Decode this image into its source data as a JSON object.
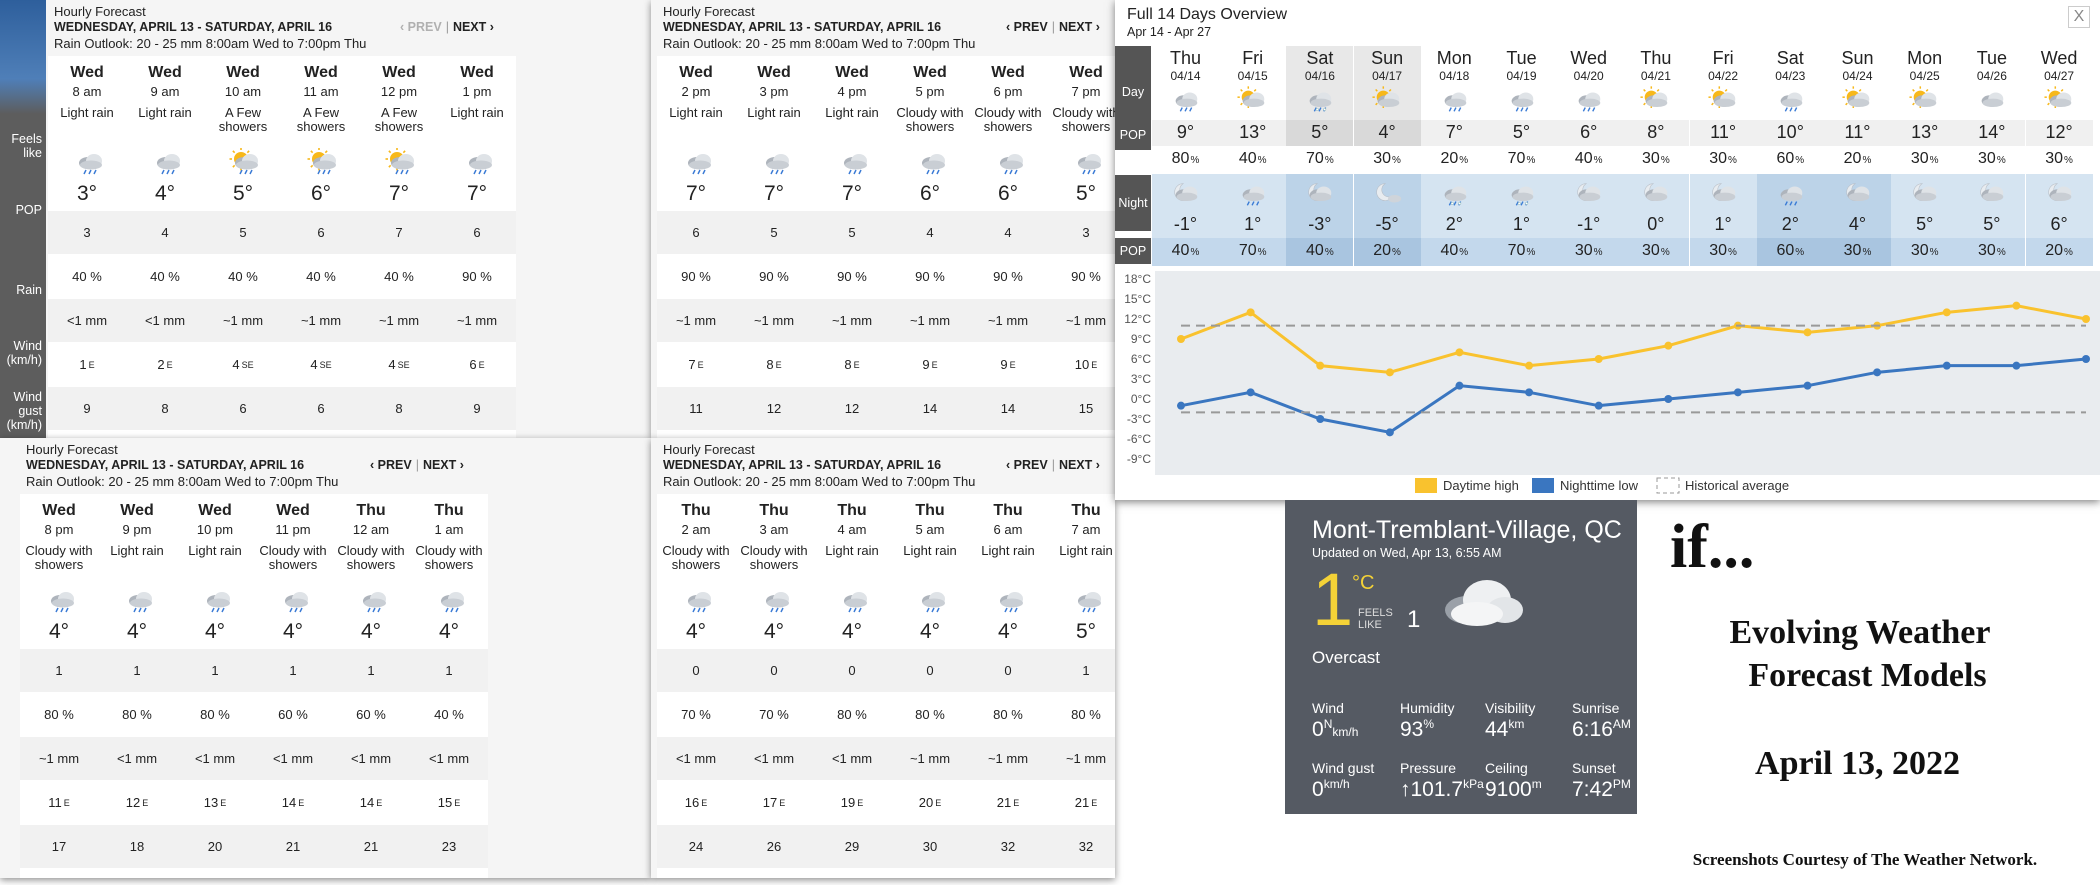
{
  "hourly_common": {
    "title": "Hourly Forecast",
    "subtitle": "WEDNESDAY, APRIL 13 - SATURDAY, APRIL 16",
    "rain": "Rain Outlook: 20 - 25 mm 8:00am Wed to 7:00pm Thu",
    "prev": "‹ PREV",
    "next": "NEXT ›",
    "sep": "|"
  },
  "row_labels": {
    "feels": "Feels like",
    "pop": "POP",
    "rain": "Rain",
    "wind": "Wind (km/h)",
    "gust": "Wind gust (km/h)"
  },
  "panels": [
    {
      "cols": [
        {
          "day": "Wed",
          "time": "8 am",
          "cond": "Light rain",
          "icon": "rain-cloud-icon",
          "temp": "3°",
          "feels": "3",
          "pop": "40 %",
          "rain": "<1 mm",
          "wind": "1",
          "dir": "E",
          "gust": "9"
        },
        {
          "day": "Wed",
          "time": "9 am",
          "cond": "Light rain",
          "icon": "rain-cloud-icon",
          "temp": "4°",
          "feels": "4",
          "pop": "40 %",
          "rain": "<1 mm",
          "wind": "2",
          "dir": "E",
          "gust": "8"
        },
        {
          "day": "Wed",
          "time": "10 am",
          "cond": "A Few showers",
          "icon": "sun-rain-icon",
          "temp": "5°",
          "feels": "5",
          "pop": "40 %",
          "rain": "~1 mm",
          "wind": "4",
          "dir": "SE",
          "gust": "6"
        },
        {
          "day": "Wed",
          "time": "11 am",
          "cond": "A Few showers",
          "icon": "sun-rain-icon",
          "temp": "6°",
          "feels": "6",
          "pop": "40 %",
          "rain": "~1 mm",
          "wind": "4",
          "dir": "SE",
          "gust": "6"
        },
        {
          "day": "Wed",
          "time": "12 pm",
          "cond": "A Few showers",
          "icon": "sun-rain-icon",
          "temp": "7°",
          "feels": "7",
          "pop": "40 %",
          "rain": "~1 mm",
          "wind": "4",
          "dir": "SE",
          "gust": "8"
        },
        {
          "day": "Wed",
          "time": "1 pm",
          "cond": "Light rain",
          "icon": "rain-cloud-icon",
          "temp": "7°",
          "feels": "6",
          "pop": "90 %",
          "rain": "~1 mm",
          "wind": "6",
          "dir": "E",
          "gust": "9"
        }
      ]
    },
    {
      "cols": [
        {
          "day": "Wed",
          "time": "2 pm",
          "cond": "Light rain",
          "icon": "rain-cloud-icon",
          "temp": "7°",
          "feels": "6",
          "pop": "90 %",
          "rain": "~1 mm",
          "wind": "7",
          "dir": "E",
          "gust": "11"
        },
        {
          "day": "Wed",
          "time": "3 pm",
          "cond": "Light rain",
          "icon": "rain-cloud-icon",
          "temp": "7°",
          "feels": "5",
          "pop": "90 %",
          "rain": "~1 mm",
          "wind": "8",
          "dir": "E",
          "gust": "12"
        },
        {
          "day": "Wed",
          "time": "4 pm",
          "cond": "Light rain",
          "icon": "rain-cloud-icon",
          "temp": "7°",
          "feels": "5",
          "pop": "90 %",
          "rain": "~1 mm",
          "wind": "8",
          "dir": "E",
          "gust": "12"
        },
        {
          "day": "Wed",
          "time": "5 pm",
          "cond": "Cloudy with showers",
          "icon": "rain-cloud-icon",
          "temp": "6°",
          "feels": "4",
          "pop": "90 %",
          "rain": "~1 mm",
          "wind": "9",
          "dir": "E",
          "gust": "14"
        },
        {
          "day": "Wed",
          "time": "6 pm",
          "cond": "Cloudy with showers",
          "icon": "rain-cloud-icon",
          "temp": "6°",
          "feels": "4",
          "pop": "90 %",
          "rain": "~1 mm",
          "wind": "9",
          "dir": "E",
          "gust": "14"
        },
        {
          "day": "Wed",
          "time": "7 pm",
          "cond": "Cloudy with showers",
          "icon": "rain-cloud-icon",
          "temp": "5°",
          "feels": "3",
          "pop": "90 %",
          "rain": "~1 mm",
          "wind": "10",
          "dir": "E",
          "gust": "15"
        }
      ]
    },
    {
      "cols": [
        {
          "day": "Wed",
          "time": "8 pm",
          "cond": "Cloudy with showers",
          "icon": "rain-cloud-icon",
          "temp": "4°",
          "feels": "1",
          "pop": "80 %",
          "rain": "~1 mm",
          "wind": "11",
          "dir": "E",
          "gust": "17"
        },
        {
          "day": "Wed",
          "time": "9 pm",
          "cond": "Light rain",
          "icon": "rain-cloud-icon",
          "temp": "4°",
          "feels": "1",
          "pop": "80 %",
          "rain": "<1 mm",
          "wind": "12",
          "dir": "E",
          "gust": "18"
        },
        {
          "day": "Wed",
          "time": "10 pm",
          "cond": "Light rain",
          "icon": "rain-cloud-icon",
          "temp": "4°",
          "feels": "1",
          "pop": "80 %",
          "rain": "<1 mm",
          "wind": "13",
          "dir": "E",
          "gust": "20"
        },
        {
          "day": "Wed",
          "time": "11 pm",
          "cond": "Cloudy with showers",
          "icon": "rain-cloud-icon",
          "temp": "4°",
          "feels": "1",
          "pop": "60 %",
          "rain": "<1 mm",
          "wind": "14",
          "dir": "E",
          "gust": "21"
        },
        {
          "day": "Thu",
          "time": "12 am",
          "cond": "Cloudy with showers",
          "icon": "rain-cloud-icon",
          "temp": "4°",
          "feels": "1",
          "pop": "60 %",
          "rain": "<1 mm",
          "wind": "14",
          "dir": "E",
          "gust": "21"
        },
        {
          "day": "Thu",
          "time": "1 am",
          "cond": "Cloudy with showers",
          "icon": "rain-cloud-icon",
          "temp": "4°",
          "feels": "1",
          "pop": "40 %",
          "rain": "<1 mm",
          "wind": "15",
          "dir": "E",
          "gust": "23"
        }
      ]
    },
    {
      "cols": [
        {
          "day": "Thu",
          "time": "2 am",
          "cond": "Cloudy with showers",
          "icon": "rain-cloud-icon",
          "temp": "4°",
          "feels": "0",
          "pop": "70 %",
          "rain": "<1 mm",
          "wind": "16",
          "dir": "E",
          "gust": "24"
        },
        {
          "day": "Thu",
          "time": "3 am",
          "cond": "Cloudy with showers",
          "icon": "rain-cloud-icon",
          "temp": "4°",
          "feels": "0",
          "pop": "70 %",
          "rain": "<1 mm",
          "wind": "17",
          "dir": "E",
          "gust": "26"
        },
        {
          "day": "Thu",
          "time": "4 am",
          "cond": "Light rain",
          "icon": "rain-cloud-icon",
          "temp": "4°",
          "feels": "0",
          "pop": "80 %",
          "rain": "<1 mm",
          "wind": "19",
          "dir": "E",
          "gust": "29"
        },
        {
          "day": "Thu",
          "time": "5 am",
          "cond": "Light rain",
          "icon": "rain-cloud-icon",
          "temp": "4°",
          "feels": "0",
          "pop": "80 %",
          "rain": "~1 mm",
          "wind": "20",
          "dir": "E",
          "gust": "30"
        },
        {
          "day": "Thu",
          "time": "6 am",
          "cond": "Light rain",
          "icon": "rain-cloud-icon",
          "temp": "4°",
          "feels": "0",
          "pop": "80 %",
          "rain": "~1 mm",
          "wind": "21",
          "dir": "E",
          "gust": "32"
        },
        {
          "day": "Thu",
          "time": "7 am",
          "cond": "Light rain",
          "icon": "rain-cloud-icon",
          "temp": "5°",
          "feels": "1",
          "pop": "80 %",
          "rain": "~1 mm",
          "wind": "21",
          "dir": "E",
          "gust": "32"
        }
      ]
    }
  ],
  "overview": {
    "title": "Full 14 Days Overview",
    "range": "Apr 14 - Apr 27",
    "close": "X",
    "labels": {
      "day": "Day",
      "pop": "POP",
      "night": "Night"
    },
    "days": [
      {
        "d": "Thu",
        "date": "04/14",
        "dayIcon": "rain-cloud-icon",
        "hi": "9°",
        "popDay": "80",
        "nightIcon": "moon-cloud-icon",
        "lo": "-1°",
        "popNight": "40"
      },
      {
        "d": "Fri",
        "date": "04/15",
        "dayIcon": "sun-cloud-icon",
        "hi": "13°",
        "popDay": "40",
        "nightIcon": "rain-cloud-icon",
        "lo": "1°",
        "popNight": "70"
      },
      {
        "d": "Sat",
        "date": "04/16",
        "dayIcon": "snow-rain-icon",
        "hi": "5°",
        "popDay": "70",
        "nightIcon": "moon-cloud-icon",
        "lo": "-3°",
        "popNight": "40"
      },
      {
        "d": "Sun",
        "date": "04/17",
        "dayIcon": "sun-cloud-icon",
        "hi": "4°",
        "popDay": "30",
        "nightIcon": "moon-icon",
        "lo": "-5°",
        "popNight": "20"
      },
      {
        "d": "Mon",
        "date": "04/18",
        "dayIcon": "rain-cloud-icon",
        "hi": "7°",
        "popDay": "20",
        "nightIcon": "snow-rain-icon",
        "lo": "2°",
        "popNight": "40"
      },
      {
        "d": "Tue",
        "date": "04/19",
        "dayIcon": "rain-cloud-icon",
        "hi": "5°",
        "popDay": "70",
        "nightIcon": "snow-rain-icon",
        "lo": "1°",
        "popNight": "70"
      },
      {
        "d": "Wed",
        "date": "04/20",
        "dayIcon": "rain-cloud-icon",
        "hi": "6°",
        "popDay": "40",
        "nightIcon": "moon-cloud-icon",
        "lo": "-1°",
        "popNight": "30"
      },
      {
        "d": "Thu",
        "date": "04/21",
        "dayIcon": "sun-cloud-icon",
        "hi": "8°",
        "popDay": "30",
        "nightIcon": "moon-cloud-icon",
        "lo": "0°",
        "popNight": "30"
      },
      {
        "d": "Fri",
        "date": "04/22",
        "dayIcon": "sun-cloud-icon",
        "hi": "11°",
        "popDay": "30",
        "nightIcon": "moon-cloud-icon",
        "lo": "1°",
        "popNight": "30"
      },
      {
        "d": "Sat",
        "date": "04/23",
        "dayIcon": "rain-cloud-icon",
        "hi": "10°",
        "popDay": "60",
        "nightIcon": "rain-cloud-icon",
        "lo": "2°",
        "popNight": "60"
      },
      {
        "d": "Sun",
        "date": "04/24",
        "dayIcon": "sun-cloud-icon",
        "hi": "11°",
        "popDay": "20",
        "nightIcon": "moon-cloud-icon",
        "lo": "4°",
        "popNight": "30"
      },
      {
        "d": "Mon",
        "date": "04/25",
        "dayIcon": "sun-cloud-icon",
        "hi": "13°",
        "popDay": "30",
        "nightIcon": "moon-cloud-icon",
        "lo": "5°",
        "popNight": "30"
      },
      {
        "d": "Tue",
        "date": "04/26",
        "dayIcon": "cloud-icon",
        "hi": "14°",
        "popDay": "30",
        "nightIcon": "moon-cloud-icon",
        "lo": "5°",
        "popNight": "30"
      },
      {
        "d": "Wed",
        "date": "04/27",
        "dayIcon": "sun-cloud-icon",
        "hi": "12°",
        "popDay": "30",
        "nightIcon": "moon-cloud-icon",
        "lo": "6°",
        "popNight": "20"
      }
    ],
    "pct": "%"
  },
  "chart_data": {
    "type": "line",
    "categories": [
      "04/14",
      "04/15",
      "04/16",
      "04/17",
      "04/18",
      "04/19",
      "04/20",
      "04/21",
      "04/22",
      "04/23",
      "04/24",
      "04/25",
      "04/26",
      "04/27"
    ],
    "series": [
      {
        "name": "Daytime high",
        "values": [
          9,
          13,
          5,
          4,
          7,
          5,
          6,
          8,
          11,
          10,
          11,
          13,
          14,
          12
        ],
        "color": "#f9c22e"
      },
      {
        "name": "Nighttime low",
        "values": [
          -1,
          1,
          -3,
          -5,
          2,
          1,
          -1,
          0,
          1,
          2,
          4,
          5,
          5,
          6
        ],
        "color": "#3a76c0"
      },
      {
        "name": "Historical average",
        "values": [
          11,
          11,
          11,
          11,
          11,
          11,
          11,
          11,
          11,
          11,
          11,
          11,
          11,
          11
        ],
        "color": "#999999"
      },
      {
        "name": "Historical average low",
        "values": [
          -2,
          -2,
          -2,
          -2,
          -2,
          -2,
          -2,
          -2,
          -2,
          -2,
          -2,
          -2,
          -2,
          -2
        ],
        "color": "#999999"
      }
    ],
    "yticks": [
      "18°C",
      "15°C",
      "12°C",
      "9°C",
      "6°C",
      "3°C",
      "0°C",
      "-3°C",
      "-6°C",
      "-9°C"
    ],
    "ylim": [
      -9,
      18
    ],
    "legend": [
      "Daytime high",
      "Nighttime low",
      "Historical average"
    ],
    "legend_position": "bottom"
  },
  "current": {
    "city": "Mont-Tremblant-Village, QC",
    "updated": "Updated on Wed, Apr 13, 6:55 AM",
    "temp": "1",
    "unit": "°C",
    "feels_label1": "FEELS",
    "feels_label2": "LIKE",
    "feels": "1",
    "cond": "Overcast",
    "icon": "cloud-icon",
    "stats": [
      {
        "k": "Wind",
        "v": "0",
        "u": "N",
        "u2": "km/h"
      },
      {
        "k": "Humidity",
        "v": "93",
        "u": "%",
        "u2": ""
      },
      {
        "k": "Visibility",
        "v": "44",
        "u": "km",
        "u2": ""
      },
      {
        "k": "Sunrise",
        "v": "6:16",
        "u": "AM",
        "u2": ""
      },
      {
        "k": "Wind gust",
        "v": "0",
        "u": "km/h",
        "u2": ""
      },
      {
        "k": "Pressure",
        "v": "↑101.7",
        "u": "kPa",
        "u2": ""
      },
      {
        "k": "Ceiling",
        "v": "9100",
        "u": "m",
        "u2": ""
      },
      {
        "k": "Sunset",
        "v": "7:42",
        "u": "PM",
        "u2": ""
      }
    ]
  },
  "caption": {
    "if": "if...",
    "line1": "Evolving Weather",
    "line2": "Forecast Models",
    "date": "April 13, 2022",
    "credit": "Screenshots Courtesy of The Weather Network."
  }
}
